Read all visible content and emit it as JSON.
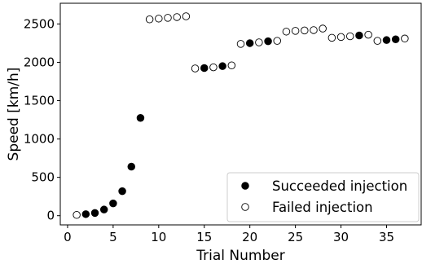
{
  "chart_data": {
    "type": "scatter",
    "title": "",
    "xlabel": "Trial Number",
    "ylabel": "Speed [km/h]",
    "xlim": [
      -0.8,
      38.8
    ],
    "ylim": [
      -120,
      2770
    ],
    "xticks": [
      0,
      5,
      10,
      15,
      20,
      25,
      30,
      35
    ],
    "yticks": [
      0,
      500,
      1000,
      1500,
      2000,
      2500
    ],
    "grid": false,
    "legend_position": "lower right",
    "series": [
      {
        "name": "Succeeded injection",
        "marker": "filled-circle",
        "color": "#000000",
        "x": [
          2,
          3,
          4,
          5,
          6,
          7,
          8,
          15,
          17,
          20,
          22,
          32,
          35,
          36
        ],
        "y": [
          20,
          35,
          80,
          160,
          320,
          640,
          1275,
          1925,
          1950,
          2250,
          2275,
          2350,
          2290,
          2300
        ]
      },
      {
        "name": "Failed injection",
        "marker": "open-circle",
        "color": "#000000",
        "x": [
          1,
          9,
          10,
          11,
          12,
          13,
          14,
          16,
          18,
          19,
          21,
          23,
          24,
          25,
          26,
          27,
          28,
          29,
          30,
          31,
          33,
          34,
          37
        ],
        "y": [
          10,
          2560,
          2570,
          2580,
          2590,
          2600,
          1920,
          1935,
          1960,
          2240,
          2260,
          2280,
          2400,
          2410,
          2415,
          2420,
          2440,
          2320,
          2330,
          2340,
          2360,
          2280,
          2310
        ]
      }
    ]
  }
}
